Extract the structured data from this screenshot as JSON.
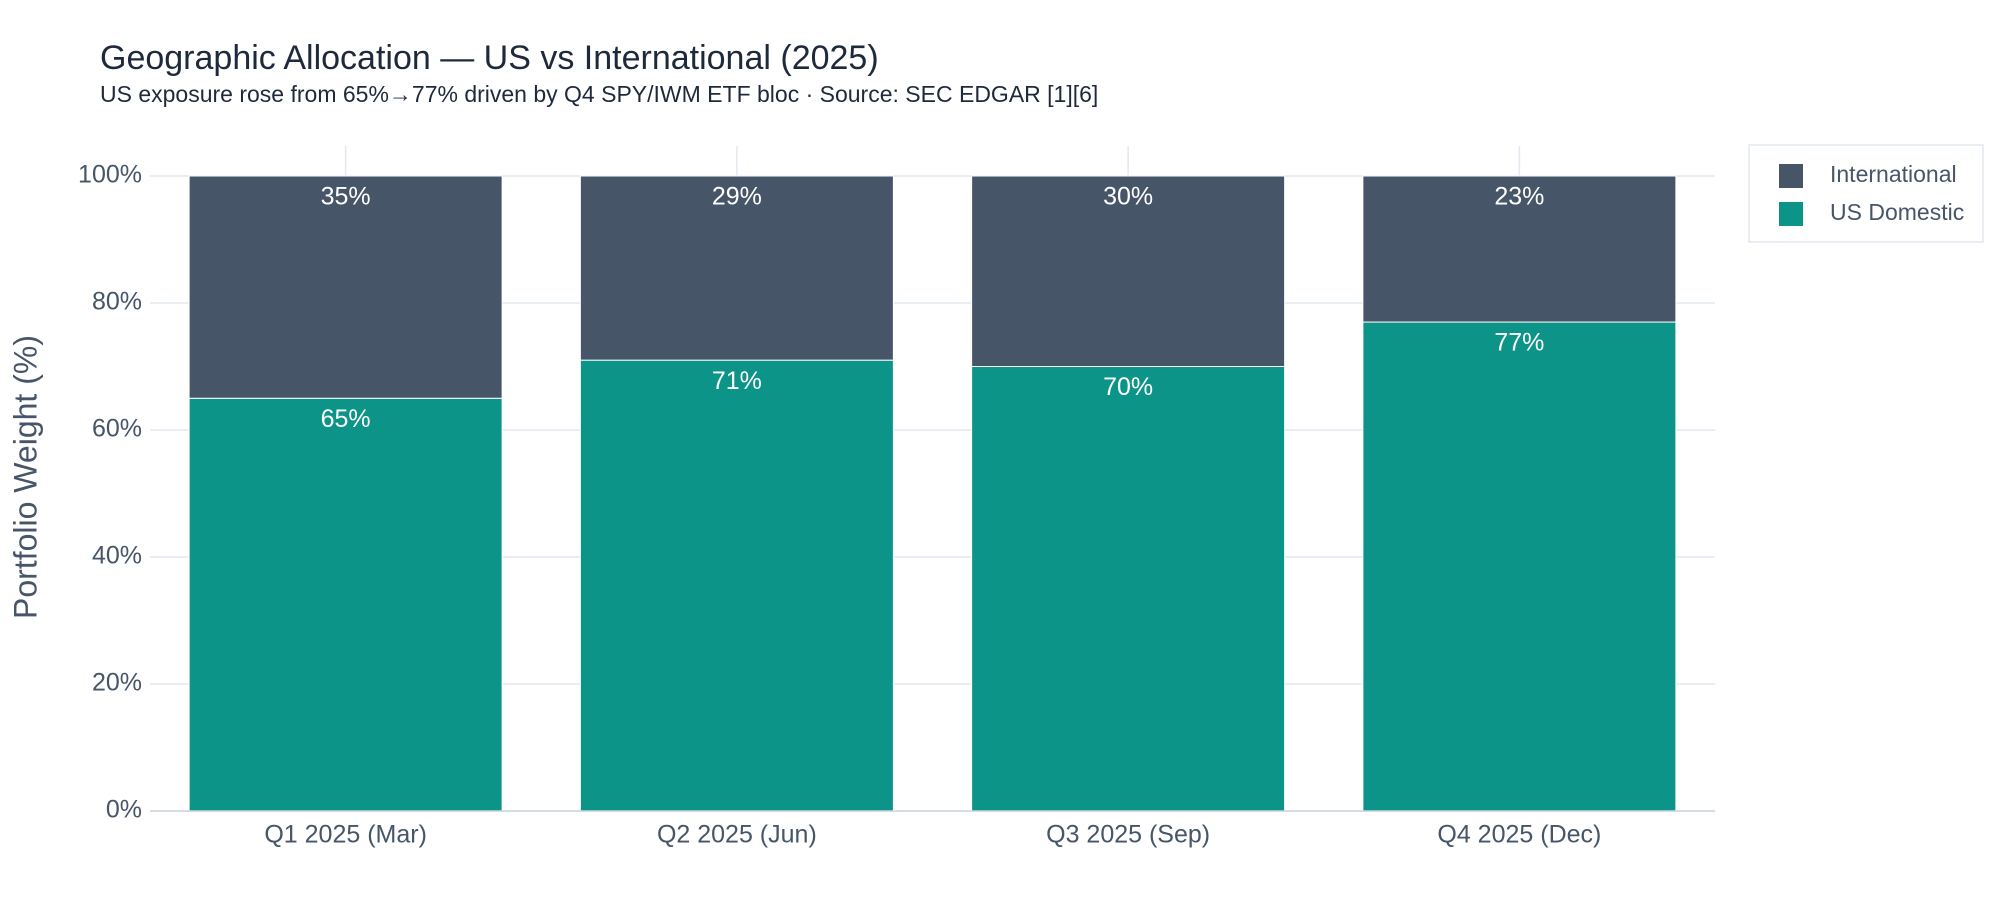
{
  "chart_data": {
    "type": "stacked-bar",
    "title": "Geographic Allocation — US vs International (2025)",
    "subtitle": "US exposure rose from 65%→77% driven by Q4 SPY/IWM ETF bloc · Source: SEC EDGAR [1][6]",
    "y_label": "Portfolio Weight (%)",
    "categories": [
      "Q1 2025 (Mar)",
      "Q2 2025 (Jun)",
      "Q3 2025 (Sep)",
      "Q4 2025 (Dec)"
    ],
    "series": [
      {
        "name": "US Domestic",
        "color": "#0d9488",
        "values": [
          65,
          71,
          70,
          77
        ],
        "value_labels": [
          "65%",
          "71%",
          "70%",
          "77%"
        ]
      },
      {
        "name": "International",
        "color": "#475569",
        "values": [
          35,
          29,
          30,
          23
        ],
        "value_labels": [
          "35%",
          "29%",
          "30%",
          "23%"
        ]
      }
    ],
    "ylim": [
      0,
      100
    ],
    "yticks": [
      {
        "value": 0,
        "label": "0%"
      },
      {
        "value": 20,
        "label": "20%"
      },
      {
        "value": 40,
        "label": "40%"
      },
      {
        "value": 60,
        "label": "60%"
      },
      {
        "value": 80,
        "label": "80%"
      },
      {
        "value": 100,
        "label": "100%"
      }
    ],
    "grid": true,
    "legend_position": "right"
  }
}
